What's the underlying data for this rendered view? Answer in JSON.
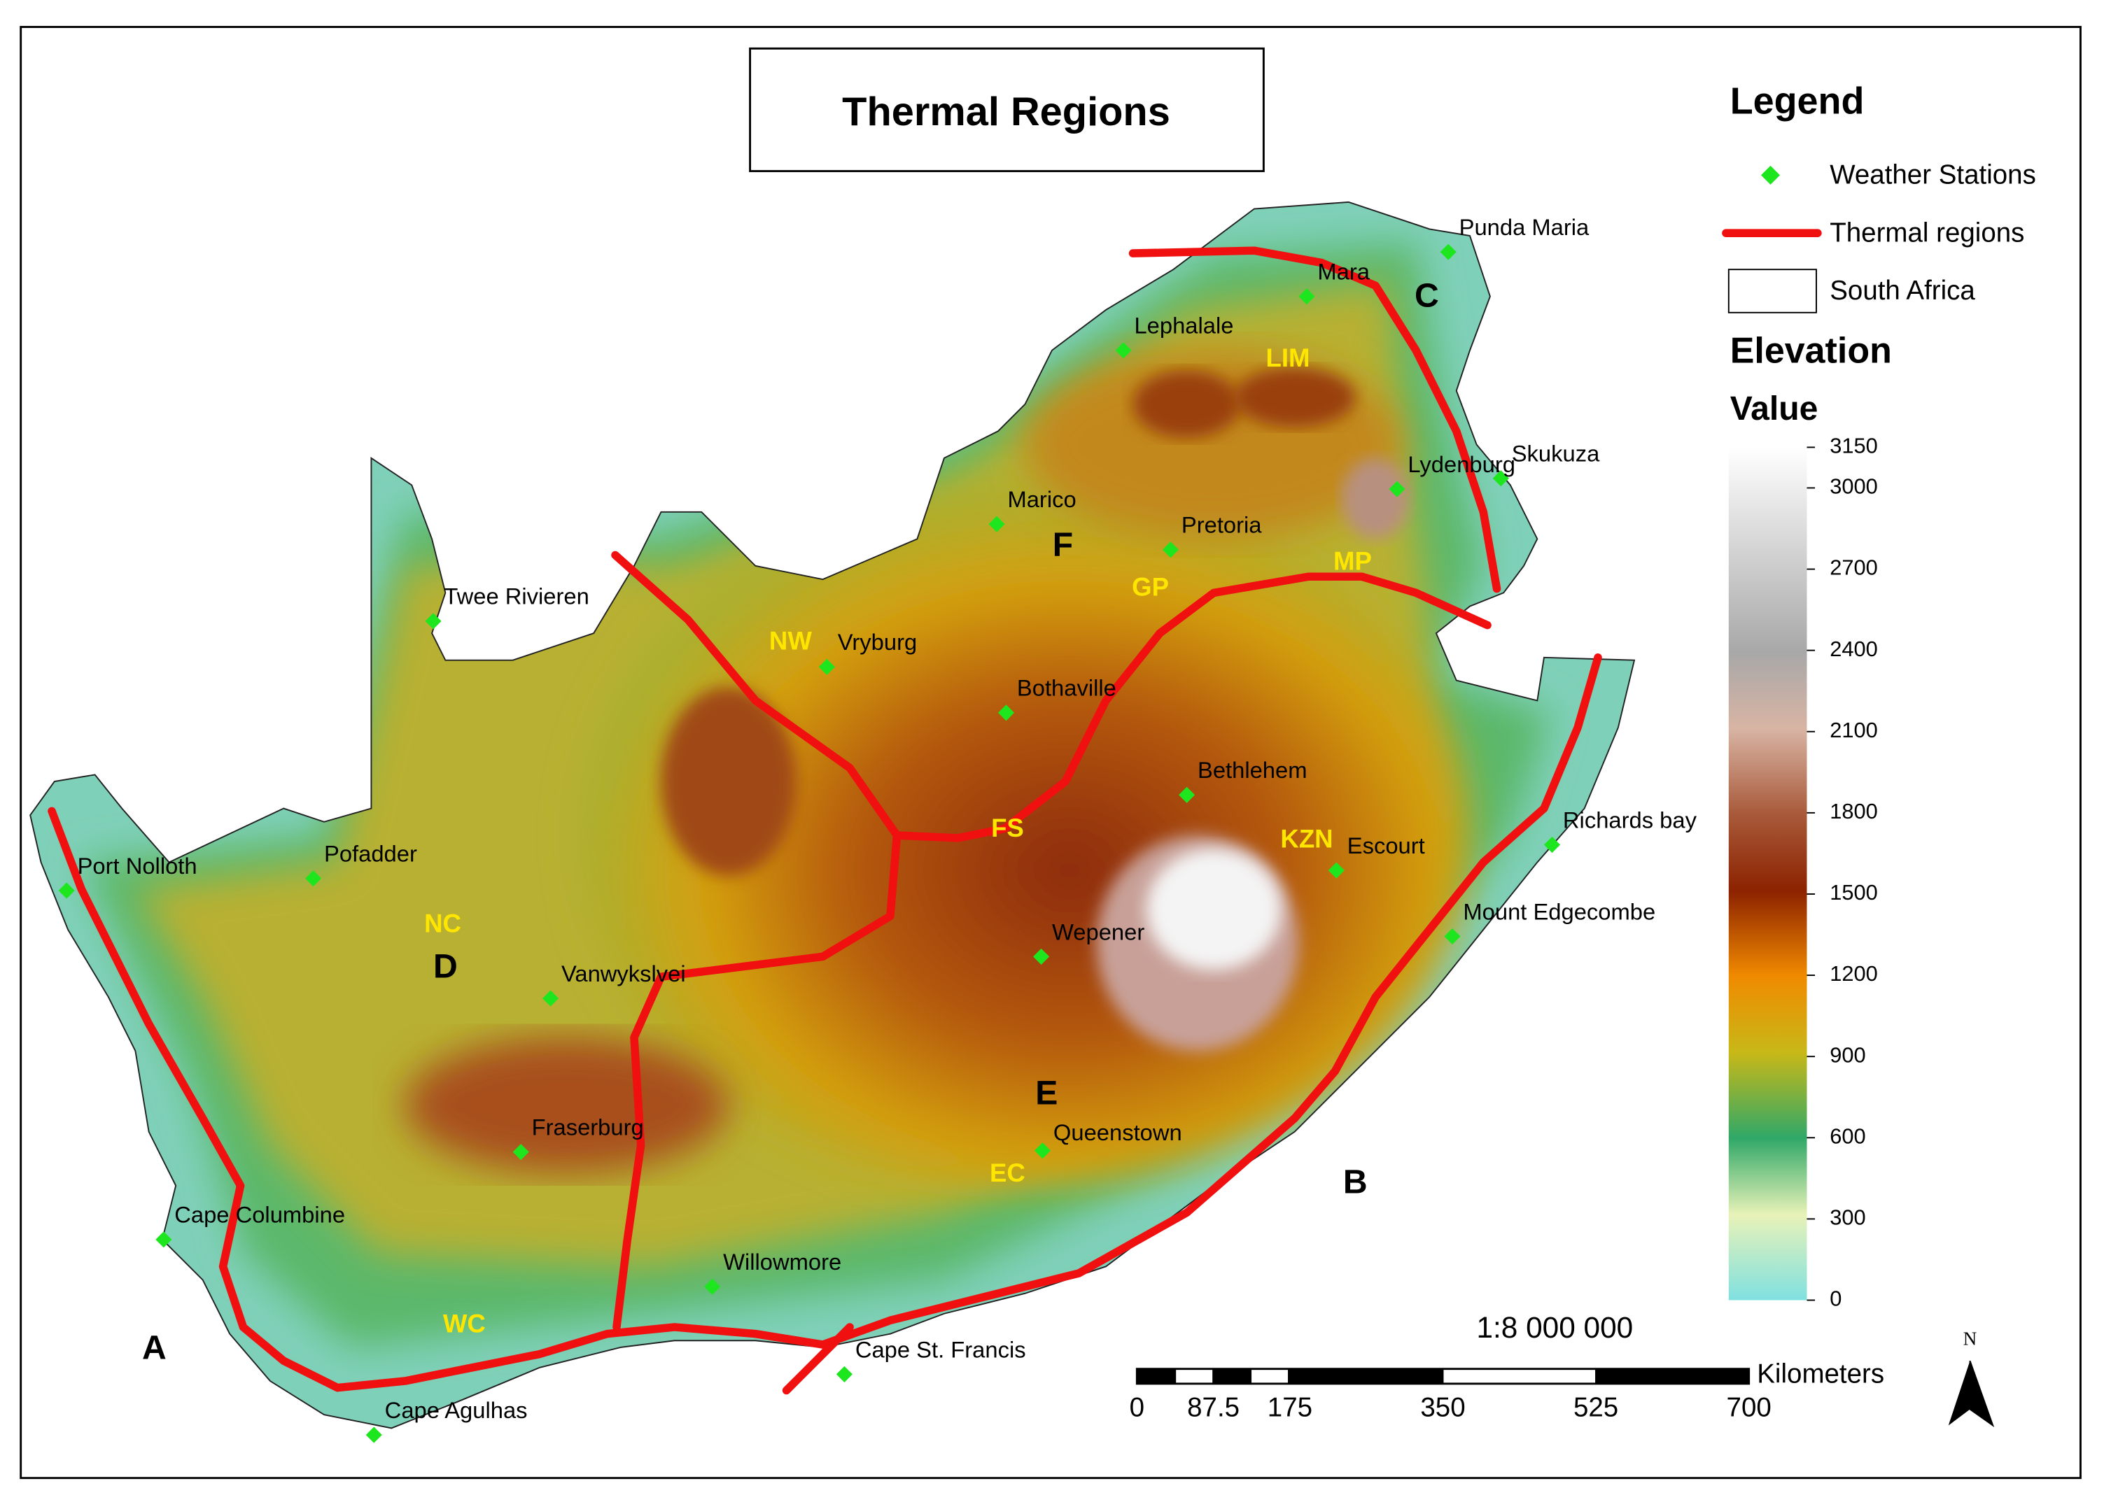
{
  "title": "Thermal Regions",
  "legend": {
    "title": "Legend",
    "items": [
      "Weather Stations",
      "Thermal regions",
      "South Africa"
    ],
    "elevation_title": "Elevation",
    "value_title": "Value",
    "colorbar": {
      "ylim": [
        0,
        3150
      ],
      "yticks": [
        3150,
        3000,
        2700,
        2400,
        2100,
        1800,
        1500,
        1200,
        900,
        600,
        300,
        0
      ]
    }
  },
  "stations": [
    "Punda Maria",
    "Mara",
    "Lephalale",
    "Skukuza",
    "Lydenburg",
    "Marico",
    "Pretoria",
    "Twee Rivieren",
    "Vryburg",
    "Bothaville",
    "Bethlehem",
    "Richards bay",
    "Escourt",
    "Pofadder",
    "Port Nolloth",
    "Mount Edgecombe",
    "Wepener",
    "Vanwykslvei",
    "Fraserburg",
    "Queenstown",
    "Cape Columbine",
    "Willowmore",
    "Cape St. Francis",
    "Cape Agulhas"
  ],
  "provinces": [
    "LIM",
    "MP",
    "GP",
    "NW",
    "FS",
    "KZN",
    "NC",
    "EC",
    "WC"
  ],
  "regions": [
    "A",
    "B",
    "C",
    "D",
    "E",
    "F"
  ],
  "scale": {
    "ratio": "1:8 000 000",
    "unit": "Kilometers",
    "xlim": [
      0,
      700
    ],
    "xticks": [
      0,
      87.5,
      175,
      350,
      525,
      700
    ]
  },
  "north": "N"
}
